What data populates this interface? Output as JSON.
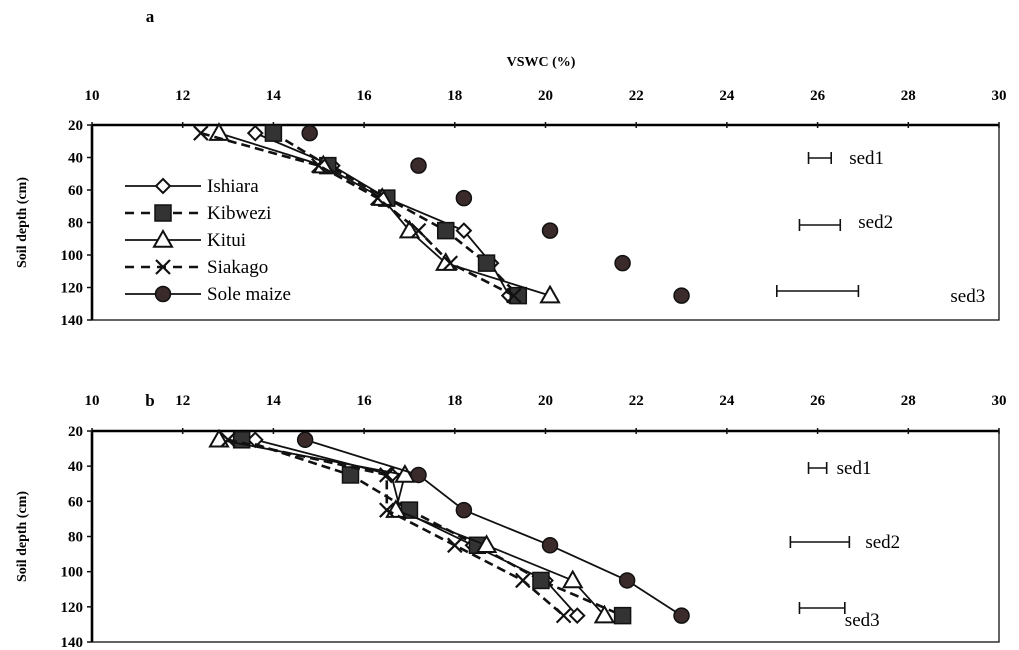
{
  "chart_data": [
    {
      "type": "line",
      "panel_label": "a",
      "title": "",
      "xlabel": "VSWC (%)",
      "ylabel": "Soil depth (cm)",
      "xlim": [
        10,
        30
      ],
      "ylim": [
        20,
        140
      ],
      "x_axis_position": "top",
      "y_inverted": true,
      "x_ticks": [
        "10",
        "12",
        "14",
        "16",
        "18",
        "20",
        "22",
        "24",
        "26",
        "28",
        "30"
      ],
      "y_ticks": [
        "20",
        "40",
        "60",
        "80",
        "100",
        "120",
        "140"
      ],
      "grid": false,
      "legend_position": "left",
      "depth": [
        25,
        45,
        65,
        85,
        105,
        125
      ],
      "series": [
        {
          "name": "Ishiara",
          "marker": "diamond",
          "line": "solid",
          "draw_line": true,
          "values": [
            13.6,
            15.3,
            16.5,
            18.2,
            18.8,
            19.2
          ]
        },
        {
          "name": "Kibwezi",
          "marker": "square",
          "line": "dashed",
          "draw_line": true,
          "values": [
            14.0,
            15.2,
            16.5,
            17.8,
            18.7,
            19.4
          ]
        },
        {
          "name": "Kitui",
          "marker": "triangle",
          "line": "solid",
          "draw_line": true,
          "values": [
            12.8,
            15.1,
            16.4,
            17.0,
            17.8,
            20.1
          ]
        },
        {
          "name": "Siakago",
          "marker": "x",
          "line": "dashed",
          "draw_line": true,
          "values": [
            12.4,
            15.0,
            16.3,
            17.2,
            17.9,
            19.3
          ]
        },
        {
          "name": "Sole maize",
          "marker": "circle",
          "line": "solid",
          "draw_line": false,
          "values": [
            14.8,
            17.2,
            18.2,
            20.1,
            21.7,
            23.0
          ]
        }
      ],
      "sed": [
        {
          "label": "sed1",
          "low": 25.8,
          "high": 26.3
        },
        {
          "label": "sed2",
          "low": 25.6,
          "high": 26.5
        },
        {
          "label": "sed3",
          "low": 25.1,
          "high": 26.9
        }
      ]
    },
    {
      "type": "line",
      "panel_label": "b",
      "title": "",
      "xlabel": "",
      "ylabel": "Soil depth (cm)",
      "xlim": [
        10,
        30
      ],
      "ylim": [
        20,
        140
      ],
      "x_axis_position": "top",
      "y_inverted": true,
      "x_ticks": [
        "10",
        "12",
        "14",
        "16",
        "18",
        "20",
        "22",
        "24",
        "26",
        "28",
        "30"
      ],
      "y_ticks": [
        "20",
        "40",
        "60",
        "80",
        "100",
        "120",
        "140"
      ],
      "grid": false,
      "depth": [
        25,
        45,
        65,
        85,
        105,
        125
      ],
      "series": [
        {
          "name": "Ishiara",
          "marker": "diamond",
          "line": "solid",
          "draw_line": true,
          "values": [
            13.6,
            16.6,
            16.8,
            18.4,
            20.0,
            20.7
          ]
        },
        {
          "name": "Kibwezi",
          "marker": "square",
          "line": "dashed",
          "draw_line": true,
          "values": [
            13.3,
            15.7,
            17.0,
            18.5,
            19.9,
            21.7
          ]
        },
        {
          "name": "Kitui",
          "marker": "triangle",
          "line": "solid",
          "draw_line": true,
          "values": [
            12.8,
            16.9,
            16.7,
            18.7,
            20.6,
            21.3
          ]
        },
        {
          "name": "Siakago",
          "marker": "x",
          "line": "dashed",
          "draw_line": true,
          "values": [
            13.0,
            16.5,
            16.5,
            18.0,
            19.5,
            20.4
          ]
        },
        {
          "name": "Sole maize",
          "marker": "circle",
          "line": "solid",
          "draw_line": true,
          "values": [
            14.7,
            17.2,
            18.2,
            20.1,
            21.8,
            23.0
          ]
        }
      ],
      "sed": [
        {
          "label": "sed1",
          "low": 25.8,
          "high": 26.2
        },
        {
          "label": "sed2",
          "low": 25.4,
          "high": 26.7
        },
        {
          "label": "sed3",
          "low": 25.6,
          "high": 26.6
        }
      ]
    }
  ]
}
